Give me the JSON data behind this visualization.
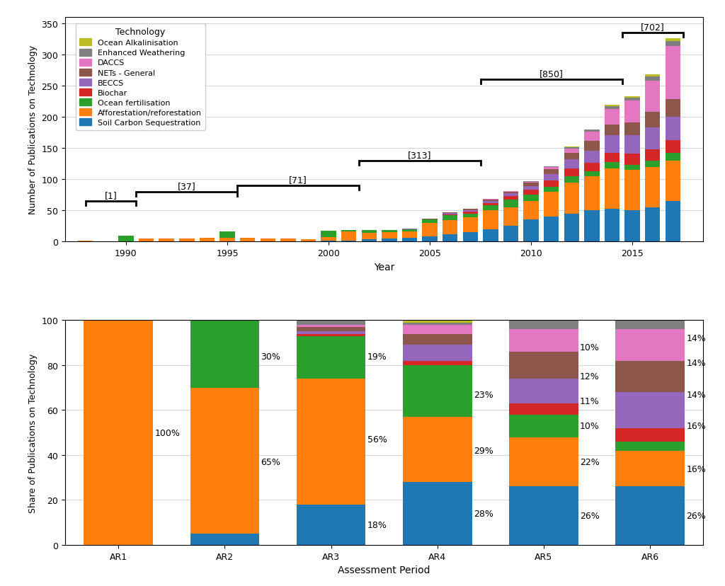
{
  "colors": {
    "Soil Carbon Sequestration": "#1f77b4",
    "Afforestation/reforestation": "#ff7f0e",
    "Ocean fertilisation": "#2ca02c",
    "Biochar": "#d62728",
    "BECCS": "#9467bd",
    "NETs - General": "#8c564b",
    "DACCS": "#e377c2",
    "Enhanced Weathering": "#7f7f7f",
    "Ocean Alkalinisation": "#bcbd22"
  },
  "legend_order": [
    "Ocean Alkalinisation",
    "Enhanced Weathering",
    "DACCS",
    "NETs - General",
    "BECCS",
    "Biochar",
    "Ocean fertilisation",
    "Afforestation/reforestation",
    "Soil Carbon Sequestration"
  ],
  "years": [
    1988,
    1989,
    1990,
    1991,
    1992,
    1993,
    1994,
    1995,
    1996,
    1997,
    1998,
    1999,
    2000,
    2001,
    2002,
    2003,
    2004,
    2005,
    2006,
    2007,
    2008,
    2009,
    2010,
    2011,
    2012,
    2013,
    2014,
    2015,
    2016,
    2017
  ],
  "top_data": {
    "Soil Carbon Sequestration": [
      0,
      0,
      0,
      0,
      0,
      0,
      0,
      0,
      0,
      0,
      0,
      0,
      1,
      2,
      4,
      5,
      6,
      8,
      12,
      15,
      20,
      25,
      35,
      40,
      45,
      50,
      52,
      50,
      55,
      65
    ],
    "Afforestation/reforestation": [
      1,
      0,
      0,
      5,
      5,
      5,
      6,
      6,
      6,
      5,
      5,
      4,
      6,
      14,
      10,
      10,
      10,
      22,
      22,
      24,
      30,
      30,
      30,
      40,
      50,
      55,
      65,
      65,
      65,
      65
    ],
    "Ocean fertilisation": [
      0,
      0,
      10,
      0,
      0,
      0,
      0,
      10,
      0,
      0,
      0,
      0,
      10,
      3,
      4,
      3,
      4,
      5,
      8,
      6,
      8,
      12,
      10,
      8,
      10,
      8,
      10,
      8,
      10,
      12
    ],
    "Biochar": [
      0,
      0,
      0,
      0,
      0,
      0,
      0,
      0,
      0,
      0,
      0,
      0,
      0,
      0,
      0,
      0,
      0,
      0,
      2,
      3,
      4,
      6,
      8,
      10,
      12,
      13,
      15,
      18,
      18,
      20
    ],
    "BECCS": [
      0,
      0,
      0,
      0,
      0,
      0,
      0,
      0,
      0,
      0,
      0,
      0,
      0,
      0,
      0,
      0,
      1,
      1,
      2,
      2,
      3,
      4,
      6,
      10,
      15,
      20,
      28,
      30,
      35,
      38
    ],
    "NETs - General": [
      0,
      0,
      0,
      0,
      0,
      0,
      0,
      0,
      0,
      0,
      0,
      0,
      0,
      0,
      0,
      0,
      0,
      1,
      1,
      2,
      2,
      3,
      5,
      8,
      10,
      15,
      18,
      20,
      25,
      28
    ],
    "DACCS": [
      0,
      0,
      0,
      0,
      0,
      0,
      0,
      0,
      0,
      0,
      0,
      0,
      0,
      0,
      0,
      0,
      0,
      0,
      0,
      0,
      1,
      1,
      2,
      4,
      7,
      15,
      25,
      35,
      50,
      85
    ],
    "Enhanced Weathering": [
      0,
      0,
      0,
      0,
      0,
      0,
      0,
      0,
      0,
      0,
      0,
      0,
      0,
      0,
      0,
      0,
      0,
      0,
      0,
      0,
      0,
      0,
      1,
      1,
      2,
      3,
      4,
      5,
      7,
      8
    ],
    "Ocean Alkalinisation": [
      0,
      0,
      0,
      0,
      0,
      0,
      0,
      0,
      0,
      0,
      0,
      0,
      0,
      0,
      0,
      0,
      0,
      0,
      0,
      0,
      0,
      0,
      0,
      0,
      1,
      1,
      2,
      2,
      3,
      5
    ]
  },
  "bracket_params": [
    [
      1988.0,
      1990.5,
      65,
      "[1]"
    ],
    [
      1990.5,
      1995.5,
      80,
      "[37]"
    ],
    [
      1995.5,
      2001.5,
      90,
      "[71]"
    ],
    [
      2001.5,
      2007.5,
      130,
      "[313]"
    ],
    [
      2007.5,
      2014.5,
      260,
      "[850]"
    ],
    [
      2014.5,
      2017.5,
      335,
      "[702]"
    ]
  ],
  "ar_periods": [
    "AR1",
    "AR2",
    "AR3",
    "AR4",
    "AR5",
    "AR6"
  ],
  "bottom_data": {
    "Soil Carbon Sequestration": [
      0,
      5,
      18,
      28,
      26,
      26
    ],
    "Afforestation/reforestation": [
      100,
      65,
      56,
      29,
      22,
      16
    ],
    "Ocean fertilisation": [
      0,
      30,
      19,
      23,
      10,
      4
    ],
    "Biochar": [
      0,
      0,
      1,
      2,
      5,
      6
    ],
    "BECCS": [
      0,
      0,
      1,
      7,
      11,
      16
    ],
    "NETs - General": [
      0,
      0,
      2,
      5,
      12,
      14
    ],
    "DACCS": [
      0,
      0,
      1,
      4,
      10,
      14
    ],
    "Enhanced Weathering": [
      0,
      0,
      2,
      1,
      4,
      4
    ],
    "Ocean Alkalinisation": [
      0,
      0,
      0,
      1,
      0,
      0
    ]
  },
  "pct_labels": {
    "AR1": [
      [
        50,
        0,
        "100%"
      ]
    ],
    "AR2": [
      [
        37,
        1,
        "65%"
      ],
      [
        84,
        1,
        "30%"
      ]
    ],
    "AR3": [
      [
        9,
        2,
        "18%"
      ],
      [
        47,
        2,
        "56%"
      ],
      [
        84,
        2,
        "19%"
      ]
    ],
    "AR4": [
      [
        14,
        3,
        "28%"
      ],
      [
        42,
        3,
        "29%"
      ],
      [
        67,
        3,
        "23%"
      ]
    ],
    "AR5": [
      [
        13,
        4,
        "26%"
      ],
      [
        37,
        4,
        "22%"
      ],
      [
        53,
        4,
        "10%"
      ],
      [
        64,
        4,
        "11%"
      ],
      [
        75,
        4,
        "12%"
      ],
      [
        88,
        4,
        "10%"
      ]
    ],
    "AR6": [
      [
        13,
        5,
        "26%"
      ],
      [
        34,
        5,
        "16%"
      ],
      [
        53,
        5,
        "16%"
      ],
      [
        67,
        5,
        "14%"
      ],
      [
        81,
        5,
        "14%"
      ],
      [
        92,
        5,
        "14%"
      ]
    ]
  }
}
